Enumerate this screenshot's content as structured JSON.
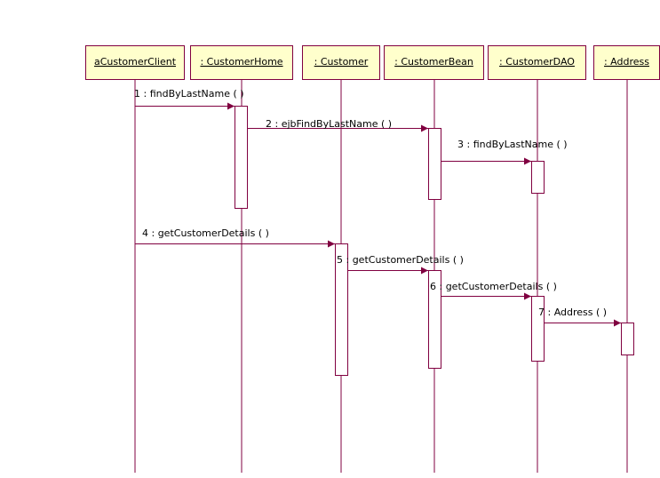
{
  "diagram": {
    "lifelines": [
      {
        "label": "aCustomerClient"
      },
      {
        "label": ": CustomerHome"
      },
      {
        "label": ": Customer"
      },
      {
        "label": ": CustomerBean"
      },
      {
        "label": ": CustomerDAO"
      },
      {
        "label": ": Address"
      }
    ],
    "messages": [
      {
        "label": "1 : findByLastName ( )"
      },
      {
        "label": "2 : ejbFindByLastName ( )"
      },
      {
        "label": "3 : findByLastName ( )"
      },
      {
        "label": "4 : getCustomerDetails ( )"
      },
      {
        "label": "5 : getCustomerDetails ( )"
      },
      {
        "label": "6 : getCustomerDetails ( )"
      },
      {
        "label": "7 : Address ( )"
      }
    ]
  }
}
